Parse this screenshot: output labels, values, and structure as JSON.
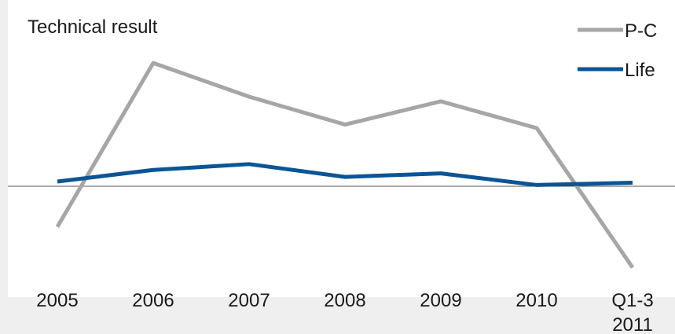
{
  "chart_data": {
    "type": "line",
    "title": "Technical result",
    "xlabel": "",
    "ylabel": "",
    "categories": [
      "2005",
      "2006",
      "2007",
      "2008",
      "2009",
      "2010",
      "Q1-3 2011"
    ],
    "series": [
      {
        "name": "P-C",
        "color": "#a6a6a6",
        "values": [
          -1.05,
          6.0,
          4.55,
          3.35,
          4.35,
          3.2,
          -2.8
        ]
      },
      {
        "name": "Life",
        "color": "#0a5596",
        "values": [
          0.9,
          1.4,
          1.65,
          1.1,
          1.25,
          0.75,
          0.85
        ]
      }
    ],
    "ylim": [
      -4.07,
      8.71
    ],
    "zero_line": true,
    "grid": false,
    "legend_position": "top-right"
  }
}
